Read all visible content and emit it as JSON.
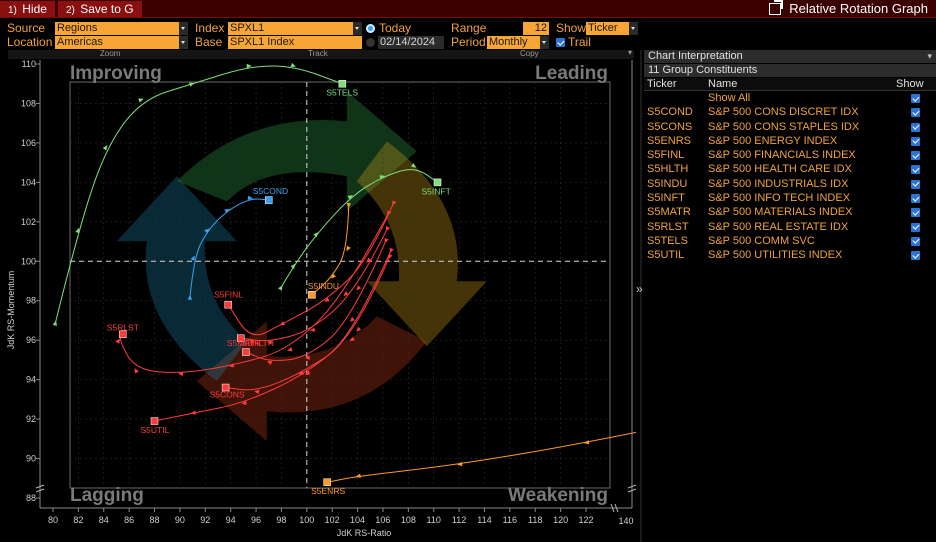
{
  "toolbar": {
    "hide_num": "1)",
    "hide_label": "Hide",
    "save_num": "2)",
    "save_label": "Save to G",
    "title": "Relative Rotation Graph"
  },
  "params": {
    "source_label": "Source",
    "source_value": "Regions",
    "location_label": "Location",
    "location_value": "Americas",
    "index_label": "Index",
    "index_value": "SPXL1",
    "base_label": "Base",
    "base_value": "SPXL1 Index",
    "today_label": "Today",
    "date_value": "02/14/2024",
    "range_label": "Range",
    "range_value": "12",
    "period_label": "Period",
    "period_value": "Monthly",
    "show_label": "Show",
    "show_value": "Ticker",
    "trail_label": "Trail"
  },
  "tools": {
    "zoom": "Zoom",
    "track": "Track",
    "copy": "Copy"
  },
  "panel": {
    "interp_label": "Chart Interpretation",
    "constituents_label": "11 Group Constituents",
    "col_ticker": "Ticker",
    "col_name": "Name",
    "col_show": "Show",
    "rows": [
      {
        "ticker": "",
        "name": "Show All"
      },
      {
        "ticker": "S5COND",
        "name": "S&P 500 CONS DISCRET IDX"
      },
      {
        "ticker": "S5CONS",
        "name": "S&P 500 CONS STAPLES IDX"
      },
      {
        "ticker": "S5ENRS",
        "name": "S&P 500 ENERGY INDEX"
      },
      {
        "ticker": "S5FINL",
        "name": "S&P 500 FINANCIALS INDEX"
      },
      {
        "ticker": "S5HLTH",
        "name": "S&P 500 HEALTH CARE IDX"
      },
      {
        "ticker": "S5INDU",
        "name": "S&P 500 INDUSTRIALS IDX"
      },
      {
        "ticker": "S5INFT",
        "name": "S&P 500 INFO TECH INDEX"
      },
      {
        "ticker": "S5MATR",
        "name": "S&P 500 MATERIALS INDEX"
      },
      {
        "ticker": "S5RLST",
        "name": "S&P 500 REAL ESTATE IDX"
      },
      {
        "ticker": "S5TELS",
        "name": "S&P 500 COMM SVC"
      },
      {
        "ticker": "S5UTIL",
        "name": "S&P 500 UTILITIES INDEX"
      }
    ]
  },
  "chart_data": {
    "type": "scatter",
    "title": "",
    "xlabel": "JdK RS-Ratio",
    "ylabel": "JdK RS-Momentum",
    "xlim": [
      80,
      125
    ],
    "ylim": [
      88,
      110
    ],
    "xticks": [
      80,
      82,
      84,
      86,
      88,
      90,
      92,
      94,
      96,
      98,
      100,
      102,
      104,
      106,
      108,
      110,
      112,
      114,
      116,
      118,
      120,
      122
    ],
    "yticks": [
      88,
      90,
      92,
      94,
      96,
      98,
      100,
      102,
      104,
      106,
      108,
      110
    ],
    "xaxis_end_label": "140",
    "quadrants": {
      "top_left": "Improving",
      "top_right": "Leading",
      "bottom_left": "Lagging",
      "bottom_right": "Weakening"
    },
    "reference_lines": {
      "x": 100,
      "y": 100
    },
    "colors": {
      "green": "#7fe07a",
      "blue": "#36a3f0",
      "red": "#ff3b3b",
      "orange": "#ff9a2a"
    },
    "series": [
      {
        "name": "S5TELS",
        "color": "#7fe07a",
        "head": [
          102.8,
          109.0
        ],
        "trail": [
          [
            80.2,
            96.9
          ],
          [
            82.0,
            101.6
          ],
          [
            84.2,
            105.8
          ],
          [
            87.0,
            108.2
          ],
          [
            91.0,
            109.0
          ],
          [
            95.5,
            109.9
          ],
          [
            99.0,
            109.9
          ],
          [
            102.8,
            109.0
          ]
        ]
      },
      {
        "name": "S5INFT",
        "color": "#7fe07a",
        "head": [
          110.3,
          104.0
        ],
        "trail": [
          [
            98.0,
            98.7
          ],
          [
            99.0,
            99.8
          ],
          [
            100.8,
            101.4
          ],
          [
            103.5,
            103.3
          ],
          [
            106.0,
            104.3
          ],
          [
            108.5,
            104.8
          ],
          [
            110.3,
            104.0
          ]
        ]
      },
      {
        "name": "S5COND",
        "color": "#36a3f0",
        "head": [
          97.0,
          103.1
        ],
        "trail": [
          [
            90.8,
            98.2
          ],
          [
            91.1,
            100.2
          ],
          [
            92.2,
            101.6
          ],
          [
            93.8,
            102.6
          ],
          [
            95.6,
            103.2
          ],
          [
            97.0,
            103.1
          ]
        ]
      },
      {
        "name": "S5INDU",
        "color": "#ff9a2a",
        "head": [
          100.4,
          98.3
        ],
        "trail": [
          [
            103.3,
            102.8
          ],
          [
            103.2,
            100.6
          ],
          [
            102.0,
            99.2
          ],
          [
            100.4,
            98.3
          ]
        ]
      },
      {
        "name": "S5ENRS",
        "color": "#ff9a2a",
        "head": [
          101.6,
          88.8
        ],
        "trail": [
          [
            138.0,
            100.2
          ],
          [
            137.0,
            94.5
          ],
          [
            134.0,
            92.4
          ],
          [
            122.0,
            90.8
          ],
          [
            112.0,
            89.7
          ],
          [
            104.0,
            89.1
          ],
          [
            101.6,
            88.8
          ]
        ]
      },
      {
        "name": "S5FINL",
        "color": "#ff3b3b",
        "head": [
          93.8,
          97.8
        ],
        "trail": [
          [
            106.8,
            102.9
          ],
          [
            104.8,
            100.0
          ],
          [
            101.5,
            98.0
          ],
          [
            98.0,
            96.8
          ],
          [
            95.6,
            96.0
          ],
          [
            93.8,
            97.8
          ]
        ]
      },
      {
        "name": "S5RLST",
        "color": "#ff3b3b",
        "head": [
          85.5,
          96.3
        ],
        "trail": [
          [
            106.4,
            102.4
          ],
          [
            103.0,
            98.3
          ],
          [
            98.6,
            95.5
          ],
          [
            94.0,
            94.7
          ],
          [
            90.0,
            94.3
          ],
          [
            86.5,
            94.5
          ],
          [
            85.2,
            96.0
          ],
          [
            85.5,
            96.3
          ]
        ]
      },
      {
        "name": "S5MATR",
        "color": "#ff3b3b",
        "head": [
          94.8,
          96.1
        ],
        "trail": [
          [
            106.3,
            101.6
          ],
          [
            104.0,
            98.6
          ],
          [
            100.4,
            96.5
          ],
          [
            97.0,
            95.9
          ],
          [
            94.8,
            96.1
          ]
        ]
      },
      {
        "name": "S5HLTH",
        "color": "#ff3b3b",
        "head": [
          95.2,
          95.4
        ],
        "trail": [
          [
            106.2,
            101.0
          ],
          [
            103.5,
            97.0
          ],
          [
            100.0,
            95.1
          ],
          [
            97.0,
            94.9
          ],
          [
            95.2,
            95.4
          ]
        ]
      },
      {
        "name": "S5CONS",
        "color": "#ff3b3b",
        "head": [
          93.6,
          93.6
        ],
        "trail": [
          [
            106.6,
            100.5
          ],
          [
            103.5,
            96.0
          ],
          [
            99.5,
            94.3
          ],
          [
            96.0,
            93.4
          ],
          [
            93.6,
            93.6
          ]
        ]
      },
      {
        "name": "S5UTIL",
        "color": "#ff3b3b",
        "head": [
          88.0,
          91.9
        ],
        "trail": [
          [
            106.5,
            100.2
          ],
          [
            104.0,
            96.5
          ],
          [
            100.0,
            94.3
          ],
          [
            95.0,
            92.8
          ],
          [
            91.0,
            92.3
          ],
          [
            88.0,
            91.9
          ]
        ]
      }
    ]
  }
}
